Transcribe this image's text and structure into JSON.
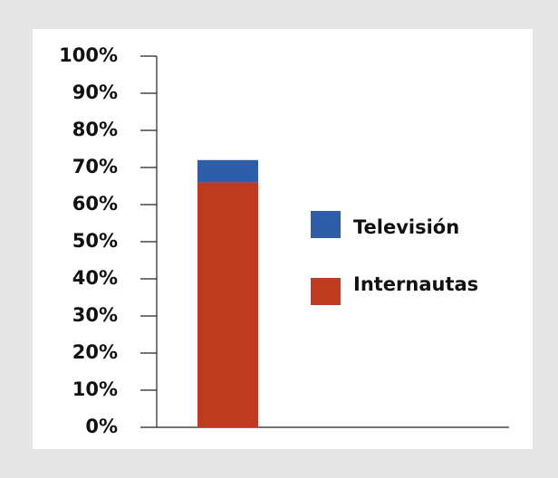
{
  "chart_data": {
    "type": "stacked_bar",
    "categories": [
      null
    ],
    "series": [
      {
        "name": "Internautas",
        "color": "#c03a20",
        "values": [
          66
        ]
      },
      {
        "name": "Televisión",
        "color": "#2e5ea8",
        "values": [
          6
        ]
      }
    ],
    "ylim": [
      0,
      100
    ],
    "yticks": [
      {
        "value": 0,
        "label": "0%"
      },
      {
        "value": 10,
        "label": "10%"
      },
      {
        "value": 20,
        "label": "20%"
      },
      {
        "value": 30,
        "label": "30%"
      },
      {
        "value": 40,
        "label": "40%"
      },
      {
        "value": 50,
        "label": "50%"
      },
      {
        "value": 60,
        "label": "60%"
      },
      {
        "value": 70,
        "label": "70%"
      },
      {
        "value": 80,
        "label": "80%"
      },
      {
        "value": 90,
        "label": "90%"
      },
      {
        "value": 100,
        "label": "100%"
      }
    ],
    "legend": "right"
  }
}
